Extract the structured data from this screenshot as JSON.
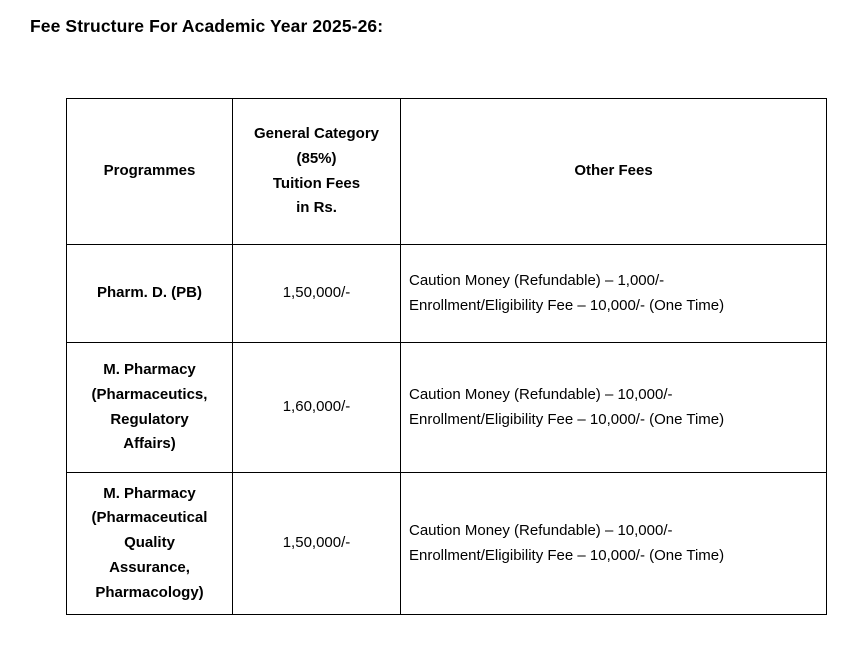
{
  "page": {
    "title": "Fee Structure For Academic Year 2025-26:"
  },
  "table": {
    "headers": {
      "programmes": "Programmes",
      "tuition": "General Category\n(85%)\nTuition Fees\nin Rs.",
      "other": "Other Fees"
    },
    "rows": [
      {
        "programme": "Pharm. D. (PB)",
        "tuition": "1,50,000/-",
        "other": "Caution Money (Refundable) – 1,000/-\nEnrollment/Eligibility Fee – 10,000/- (One Time)"
      },
      {
        "programme": "M. Pharmacy\n(Pharmaceutics,\nRegulatory\nAffairs)",
        "tuition": "1,60,000/-",
        "other": "Caution Money (Refundable) – 10,000/-\nEnrollment/Eligibility Fee – 10,000/- (One Time)"
      },
      {
        "programme": "M. Pharmacy\n(Pharmaceutical\nQuality\nAssurance,\nPharmacology)",
        "tuition": "1,50,000/-",
        "other": "Caution Money (Refundable) – 10,000/-\nEnrollment/Eligibility Fee – 10,000/- (One Time)"
      }
    ]
  },
  "colors": {
    "text": "#000000",
    "background": "#ffffff",
    "border": "#000000"
  }
}
